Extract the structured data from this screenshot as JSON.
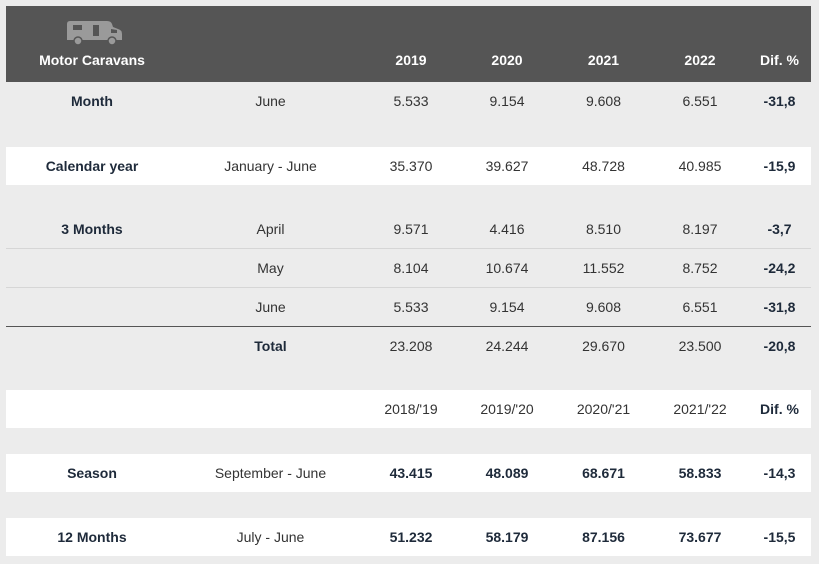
{
  "header": {
    "title": "Motor Caravans",
    "icon": "motor-caravan-icon",
    "years": [
      "2019",
      "2020",
      "2021",
      "2022"
    ],
    "dif": "Dif. %"
  },
  "month": {
    "label": "Month",
    "period": "June",
    "values": [
      "5.533",
      "9.154",
      "9.608",
      "6.551"
    ],
    "dif": "-31,8"
  },
  "calendar_year": {
    "label": "Calendar year",
    "period": "January - June",
    "values": [
      "35.370",
      "39.627",
      "48.728",
      "40.985"
    ],
    "dif": "-15,9"
  },
  "three_months": {
    "label": "3 Months",
    "rows": [
      {
        "period": "April",
        "values": [
          "9.571",
          "4.416",
          "8.510",
          "8.197"
        ],
        "dif": "-3,7"
      },
      {
        "period": "May",
        "values": [
          "8.104",
          "10.674",
          "11.552",
          "8.752"
        ],
        "dif": "-24,2"
      },
      {
        "period": "June",
        "values": [
          "5.533",
          "9.154",
          "9.608",
          "6.551"
        ],
        "dif": "-31,8"
      }
    ],
    "total": {
      "label": "Total",
      "values": [
        "23.208",
        "24.244",
        "29.670",
        "23.500"
      ],
      "dif": "-20,8"
    }
  },
  "season_header": {
    "seasons": [
      "2018/'19",
      "2019/'20",
      "2020/'21",
      "2021/'22"
    ],
    "dif": "Dif. %"
  },
  "season": {
    "label": "Season",
    "period": "September - June",
    "values": [
      "43.415",
      "48.089",
      "68.671",
      "58.833"
    ],
    "dif": "-14,3"
  },
  "twelve_months": {
    "label": "12 Months",
    "period": "July - June",
    "values": [
      "51.232",
      "58.179",
      "87.156",
      "73.677"
    ],
    "dif": "-15,5"
  }
}
